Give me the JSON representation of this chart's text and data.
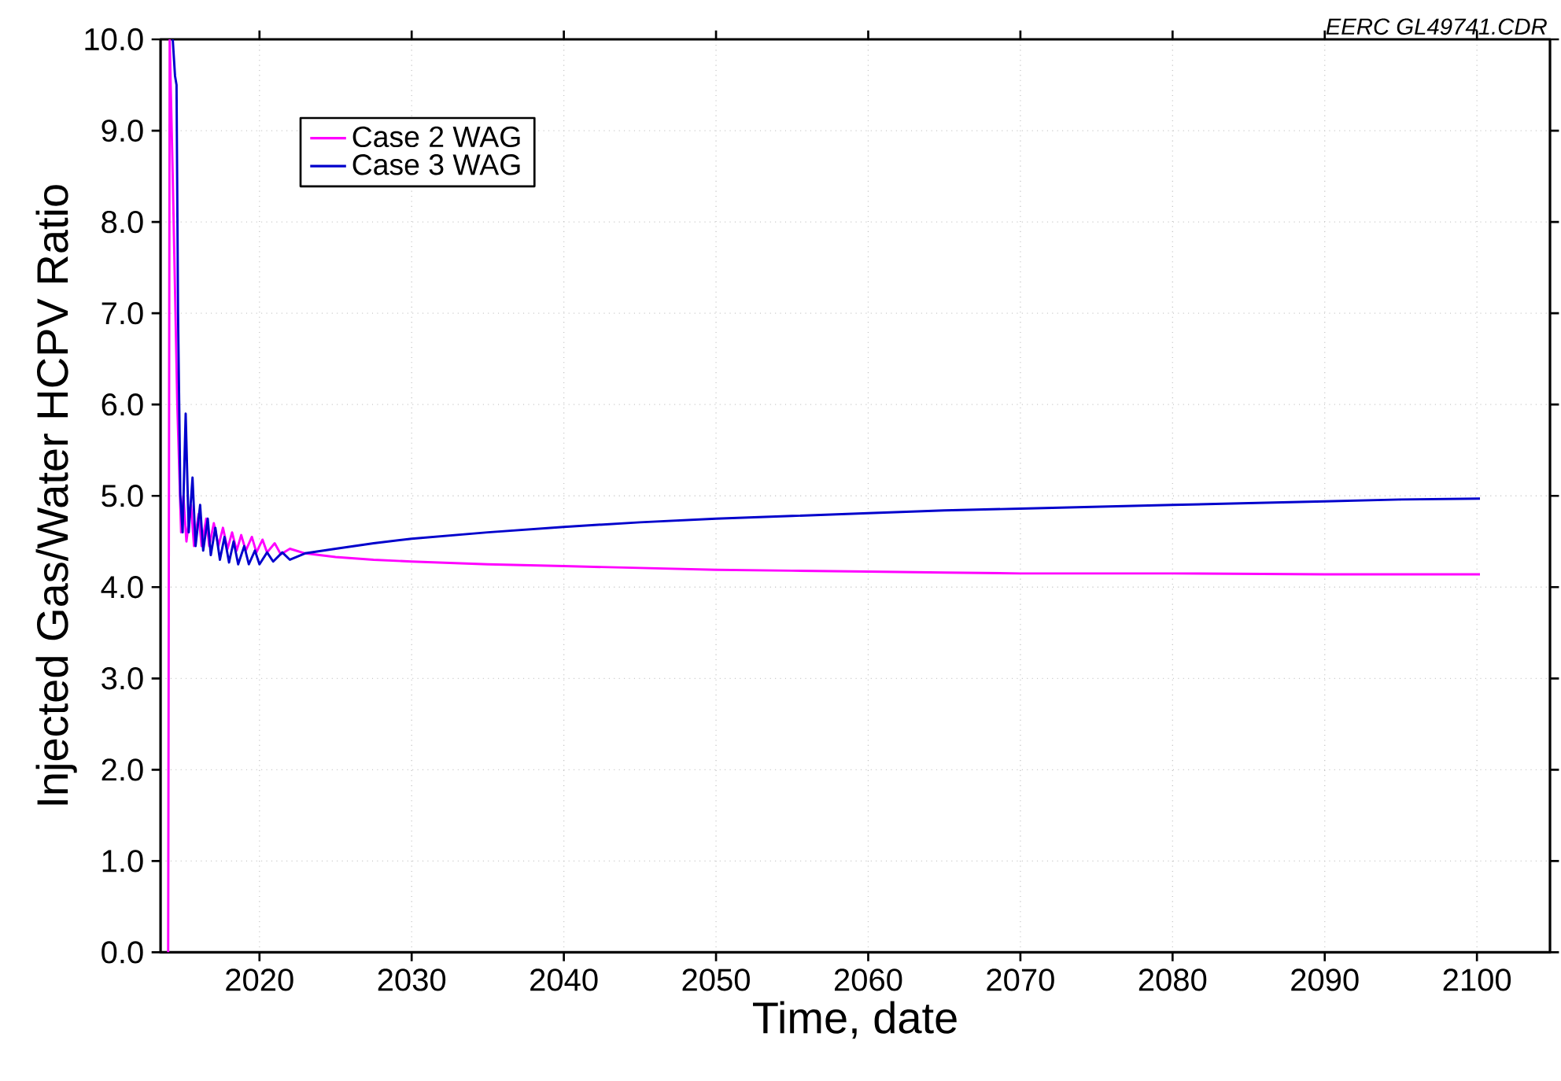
{
  "chart_data": {
    "type": "line",
    "xlabel": "Time, date",
    "ylabel": "Injected Gas/Water HCPV Ratio",
    "annotations": [
      "EERC GL49741.CDR"
    ],
    "xlim": [
      2013.5,
      2104.8
    ],
    "xticks": [
      2020,
      2030,
      2040,
      2050,
      2060,
      2070,
      2080,
      2090,
      2100
    ],
    "ylim": [
      0,
      10
    ],
    "yticks": [
      {
        "value": 0,
        "label": "0.0"
      },
      {
        "value": 1,
        "label": "1.0"
      },
      {
        "value": 2,
        "label": "2.0"
      },
      {
        "value": 3,
        "label": "3.0"
      },
      {
        "value": 4,
        "label": "4.0"
      },
      {
        "value": 5,
        "label": "5.0"
      },
      {
        "value": 6,
        "label": "6.0"
      },
      {
        "value": 7,
        "label": "7.0"
      },
      {
        "value": 8,
        "label": "8.0"
      },
      {
        "value": 9,
        "label": "9.0"
      },
      {
        "value": 10,
        "label": "10.0"
      }
    ],
    "grid": true,
    "legend": "top left",
    "marker": "none",
    "line_style": "solid",
    "series": [
      {
        "name": "Case 2 WAG",
        "color": "#ff00ff",
        "x": [
          2014.0,
          2014.1,
          2014.3,
          2014.6,
          2014.85,
          2015.0,
          2015.2,
          2015.5,
          2015.7,
          2016.0,
          2016.2,
          2016.5,
          2016.7,
          2017.0,
          2017.3,
          2017.6,
          2017.9,
          2018.2,
          2018.5,
          2018.8,
          2019.1,
          2019.5,
          2019.8,
          2020.2,
          2020.5,
          2021.0,
          2021.4,
          2022.0,
          2023.0,
          2025.0,
          2027.5,
          2030.0,
          2035.0,
          2040.0,
          2045.0,
          2050.0,
          2055.0,
          2060.0,
          2065.0,
          2070.0,
          2080.0,
          2090.0,
          2100.2
        ],
        "values": [
          0,
          10.0,
          8.5,
          6.0,
          4.6,
          5.0,
          4.5,
          4.9,
          4.45,
          4.8,
          4.45,
          4.75,
          4.45,
          4.7,
          4.45,
          4.65,
          4.42,
          4.6,
          4.4,
          4.57,
          4.4,
          4.55,
          4.38,
          4.52,
          4.38,
          4.48,
          4.36,
          4.42,
          4.37,
          4.33,
          4.3,
          4.28,
          4.25,
          4.23,
          4.21,
          4.19,
          4.18,
          4.17,
          4.16,
          4.15,
          4.15,
          4.14,
          4.14
        ]
      },
      {
        "name": "Case 3 WAG",
        "color": "#0000cc",
        "x": [
          2014.3,
          2014.45,
          2014.55,
          2014.65,
          2014.8,
          2014.95,
          2015.15,
          2015.35,
          2015.6,
          2015.8,
          2016.1,
          2016.3,
          2016.6,
          2016.8,
          2017.1,
          2017.4,
          2017.7,
          2018.0,
          2018.3,
          2018.6,
          2019.0,
          2019.3,
          2019.7,
          2020.0,
          2020.5,
          2020.9,
          2021.5,
          2022.0,
          2023.0,
          2025.0,
          2027.5,
          2030.0,
          2035.0,
          2040.0,
          2045.0,
          2050.0,
          2055.0,
          2060.0,
          2065.0,
          2070.0,
          2075.0,
          2080.0,
          2085.0,
          2090.0,
          2095.0,
          2100.2
        ],
        "values": [
          10.0,
          9.6,
          9.5,
          7.0,
          5.0,
          4.6,
          5.9,
          4.6,
          5.2,
          4.45,
          4.9,
          4.4,
          4.75,
          4.35,
          4.65,
          4.3,
          4.55,
          4.27,
          4.5,
          4.25,
          4.45,
          4.25,
          4.4,
          4.25,
          4.38,
          4.28,
          4.38,
          4.3,
          4.37,
          4.42,
          4.48,
          4.53,
          4.6,
          4.66,
          4.71,
          4.75,
          4.78,
          4.81,
          4.84,
          4.86,
          4.88,
          4.9,
          4.92,
          4.94,
          4.96,
          4.97
        ]
      }
    ]
  }
}
